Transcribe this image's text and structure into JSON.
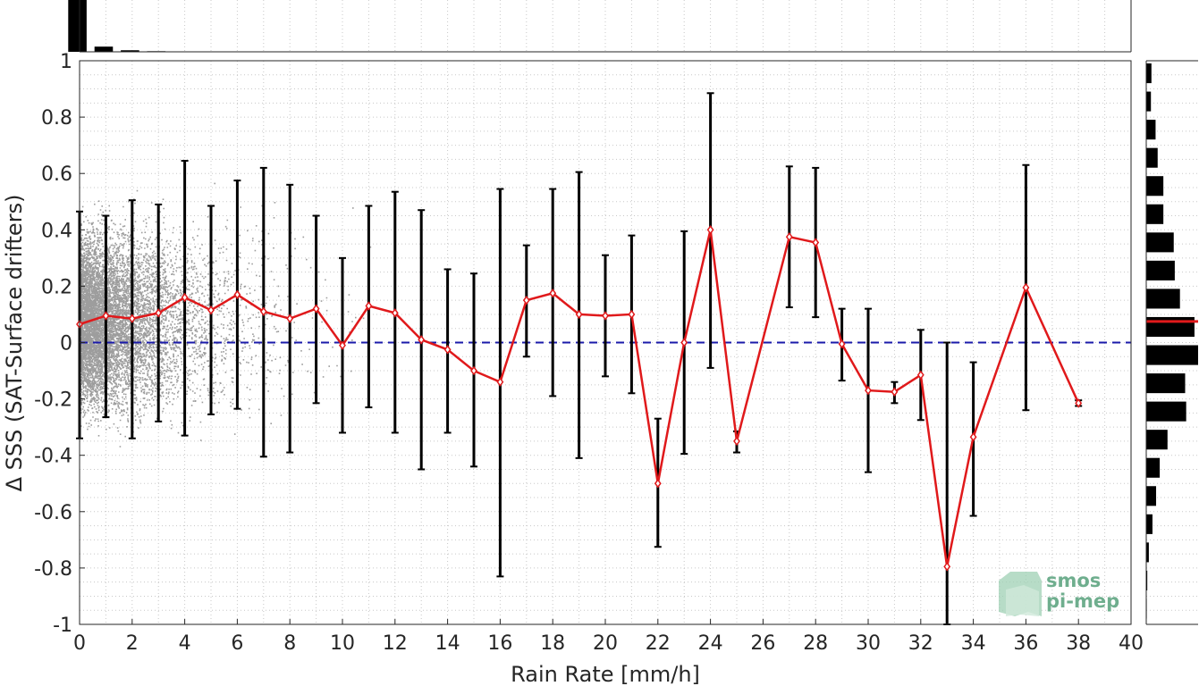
{
  "chart_data": {
    "type": "line",
    "xlabel": "Rain Rate [mm/h]",
    "ylabel": "Δ SSS (SAT-Surface drifters)",
    "xlim": [
      0,
      40
    ],
    "ylim": [
      -1,
      1
    ],
    "xticks": [
      0,
      2,
      4,
      6,
      8,
      10,
      12,
      14,
      16,
      18,
      20,
      22,
      24,
      26,
      28,
      30,
      32,
      34,
      36,
      38,
      40
    ],
    "yticks": [
      -1,
      -0.8,
      -0.6,
      -0.4,
      -0.2,
      0,
      0.2,
      0.4,
      0.6,
      0.8,
      1
    ],
    "grid": true,
    "reference_line": {
      "y": 0,
      "style": "dashed",
      "color": "#1a1aaa"
    },
    "colors": {
      "mean_line": "#e0191b",
      "error_bars": "#000000",
      "scatter": "#8c8c8c",
      "histogram": "#000000",
      "median_marker": "#e0191b"
    },
    "series": [
      {
        "x": [
          0,
          1,
          2,
          3,
          4,
          5,
          6,
          7,
          8,
          9,
          10,
          11,
          12,
          13,
          14,
          15,
          16,
          17,
          18,
          19,
          20,
          21,
          22,
          23,
          24,
          25,
          27,
          28,
          29,
          30,
          31,
          32,
          33,
          34,
          36,
          38
        ],
        "values": [
          0.065,
          0.095,
          0.085,
          0.105,
          0.16,
          0.115,
          0.17,
          0.11,
          0.085,
          0.12,
          -0.01,
          0.13,
          0.105,
          0.01,
          -0.025,
          -0.1,
          -0.14,
          0.15,
          0.175,
          0.1,
          0.095,
          0.1,
          -0.5,
          0.0,
          0.4,
          -0.35,
          0.375,
          0.355,
          -0.005,
          -0.17,
          -0.175,
          -0.115,
          -0.795,
          -0.335,
          0.195,
          -0.215
        ],
        "error_low": [
          -0.34,
          -0.265,
          -0.34,
          -0.28,
          -0.33,
          -0.255,
          -0.235,
          -0.405,
          -0.39,
          -0.215,
          -0.32,
          -0.23,
          -0.32,
          -0.45,
          -0.32,
          -0.44,
          -0.83,
          -0.05,
          -0.19,
          -0.41,
          -0.12,
          -0.18,
          -0.725,
          -0.395,
          -0.09,
          -0.39,
          0.125,
          0.09,
          -0.135,
          -0.46,
          -0.215,
          -0.275,
          -1.02,
          -0.615,
          -0.24,
          -0.225
        ],
        "error_high": [
          0.465,
          0.45,
          0.505,
          0.49,
          0.645,
          0.485,
          0.575,
          0.62,
          0.56,
          0.45,
          0.3,
          0.485,
          0.535,
          0.47,
          0.26,
          0.245,
          0.545,
          0.345,
          0.545,
          0.605,
          0.31,
          0.38,
          -0.27,
          0.395,
          0.885,
          -0.315,
          0.625,
          0.62,
          0.12,
          0.12,
          -0.14,
          0.045,
          0.0,
          -0.07,
          0.63,
          -0.205
        ]
      }
    ],
    "top_histogram": {
      "bins": [
        0,
        1,
        2,
        3
      ],
      "relative_counts": [
        1.0,
        0.1,
        0.03,
        0.012
      ]
    },
    "right_histogram": {
      "bin_centers": [
        0.95,
        0.85,
        0.75,
        0.65,
        0.55,
        0.45,
        0.35,
        0.25,
        0.15,
        0.05,
        -0.05,
        -0.15,
        -0.25,
        -0.35,
        -0.45,
        -0.55,
        -0.65,
        -0.75,
        -0.85,
        -0.95
      ],
      "relative_counts": [
        0.1,
        0.09,
        0.18,
        0.22,
        0.33,
        0.33,
        0.53,
        0.55,
        0.65,
        0.93,
        1.0,
        0.75,
        0.77,
        0.41,
        0.26,
        0.19,
        0.12,
        0.05,
        0.02,
        0.01
      ],
      "median": 0.075
    },
    "logo": {
      "line1": "smos",
      "line2": "pi-mep"
    }
  }
}
